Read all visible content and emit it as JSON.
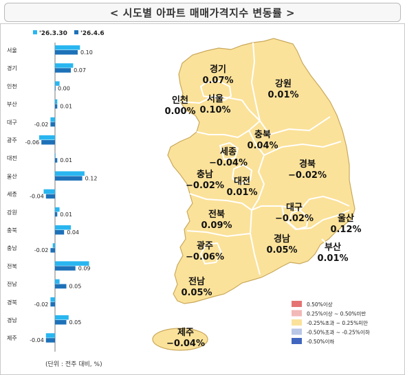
{
  "title": "< 시도별 아파트 매매가격지수 변동률 >",
  "unit_note": "(단위 : 전주 대비, %)",
  "colors": {
    "series_prev": "#29b6f0",
    "series_curr": "#1d71b8",
    "map_fill": "#fbe29a",
    "map_stroke": "#ffffff",
    "map_outline": "#c9a85a",
    "legend": [
      "#e57373",
      "#f3b8b8",
      "#fbe29a",
      "#b9c6e6",
      "#4166c0"
    ]
  },
  "chart_data": {
    "type": "bar",
    "orientation": "horizontal",
    "categories": [
      "서울",
      "경기",
      "인천",
      "부산",
      "대구",
      "광주",
      "대전",
      "울산",
      "세종",
      "강원",
      "충북",
      "충남",
      "전북",
      "전남",
      "경북",
      "경남",
      "제주"
    ],
    "series": [
      {
        "name": "'26.3.30",
        "values": [
          0.11,
          0.08,
          0.02,
          0.01,
          -0.02,
          -0.07,
          0.0,
          0.13,
          -0.05,
          0.02,
          0.07,
          -0.01,
          0.15,
          0.02,
          -0.02,
          0.06,
          -0.04
        ]
      },
      {
        "name": "'26.4.6",
        "values": [
          0.1,
          0.07,
          0.0,
          0.01,
          -0.02,
          -0.06,
          0.01,
          0.12,
          -0.04,
          0.01,
          0.04,
          -0.02,
          0.09,
          0.05,
          -0.02,
          0.05,
          -0.04
        ]
      }
    ],
    "value_labels": [
      "0.10",
      "0.07",
      "0.00",
      "0.01",
      "-0.02",
      "-0.06",
      "0.01",
      "0.12",
      "-0.04",
      "0.01",
      "0.04",
      "-0.02",
      "0.09",
      "0.05",
      "-0.02",
      "0.05",
      "-0.04"
    ],
    "legend_position": "top-left",
    "grid": false
  },
  "map_labels": [
    {
      "name": "경기",
      "value": "0.07%"
    },
    {
      "name": "강원",
      "value": "0.01%"
    },
    {
      "name": "인천",
      "value": "0.00%"
    },
    {
      "name": "서울",
      "value": "0.10%"
    },
    {
      "name": "충북",
      "value": "0.04%"
    },
    {
      "name": "세종",
      "value": "−0.04%"
    },
    {
      "name": "경북",
      "value": "−0.02%"
    },
    {
      "name": "충남",
      "value": "−0.02%"
    },
    {
      "name": "대전",
      "value": "0.01%"
    },
    {
      "name": "대구",
      "value": "−0.02%"
    },
    {
      "name": "울산",
      "value": "0.12%"
    },
    {
      "name": "전북",
      "value": "0.09%"
    },
    {
      "name": "광주",
      "value": "−0.06%"
    },
    {
      "name": "경남",
      "value": "0.05%"
    },
    {
      "name": "부산",
      "value": "0.01%"
    },
    {
      "name": "전남",
      "value": "0.05%"
    },
    {
      "name": "제주",
      "value": "−0.04%"
    }
  ],
  "legend_items": [
    "0.50%이상",
    "0.25%이상 ~ 0.50%미만",
    "-0.25%초과 ~ 0.25%미만",
    "-0.50%초과 ~ -0.25%이하",
    "-0.50%이하"
  ]
}
